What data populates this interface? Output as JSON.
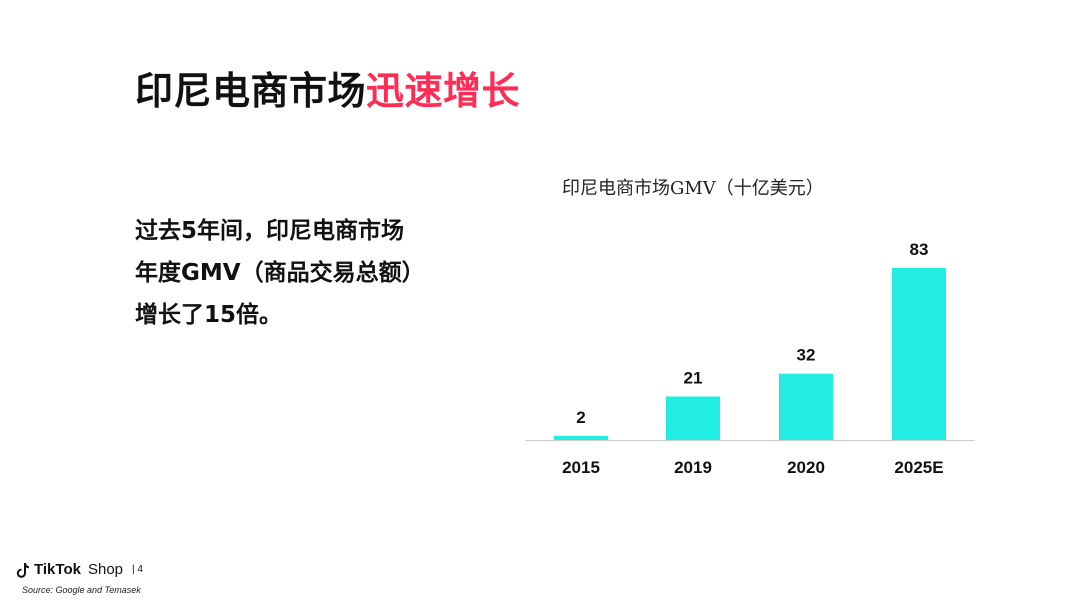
{
  "slide": {
    "title_main": "印尼电商市场",
    "title_accent": "迅速增长",
    "body_lines": [
      "过去5年间，印尼电商市场",
      "年度GMV（商品交易总额）",
      "增长了15倍。"
    ],
    "colors": {
      "accent": "#ff2d55",
      "bar": "#22ede3",
      "text": "#111111"
    }
  },
  "footer": {
    "brand": "TikTok",
    "shop": "Shop",
    "page": "| 4",
    "source": "Source: Google and Temasek",
    "logo_icon": "tiktok-note-icon"
  },
  "chart_data": {
    "type": "bar",
    "title": "印尼电商市场GMV（十亿美元）",
    "categories": [
      "2015",
      "2019",
      "2020",
      "2025E"
    ],
    "values": [
      2,
      21,
      32,
      83
    ],
    "data_labels": [
      "2",
      "21",
      "32",
      "83"
    ],
    "xlabel": "",
    "ylabel": "",
    "ylim": [
      0,
      83
    ],
    "grid": false,
    "legend": "none",
    "bar_color": "#22ede3"
  }
}
